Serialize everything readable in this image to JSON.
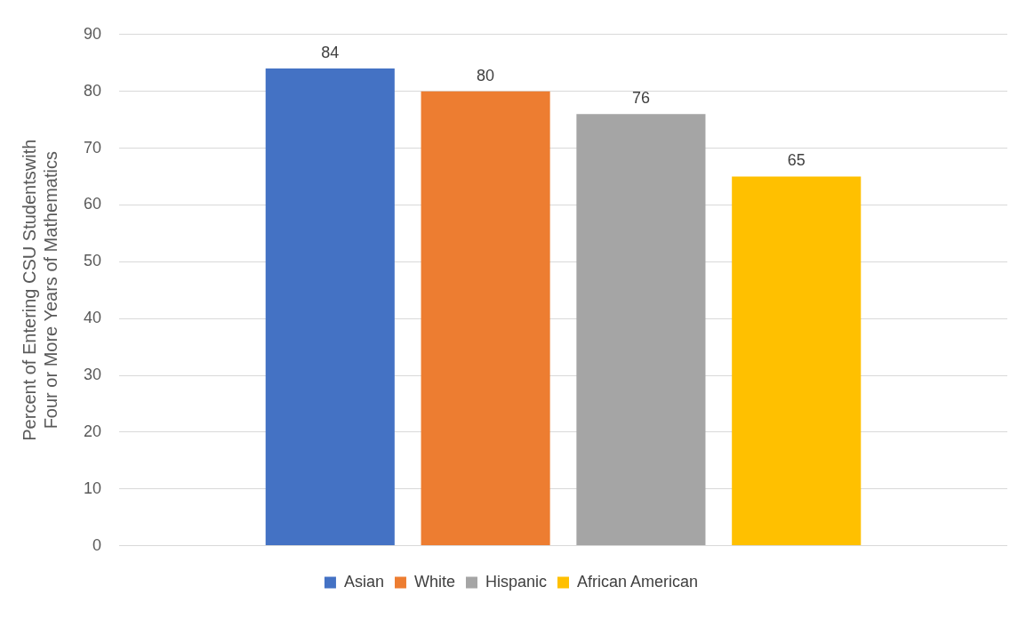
{
  "chart_data": {
    "type": "bar",
    "ylabel": "Percent of Entering CSU Studentswith Four or More Years of Mathematics",
    "categories": [
      null
    ],
    "series": [
      {
        "name": "Asian",
        "color": "#4472c4",
        "values": [
          84
        ]
      },
      {
        "name": "White",
        "color": "#ed7d31",
        "values": [
          80
        ]
      },
      {
        "name": "Hispanic",
        "color": "#a5a5a5",
        "values": [
          76
        ]
      },
      {
        "name": "African American",
        "color": "#ffc000",
        "values": [
          65
        ]
      }
    ],
    "ylim": [
      0,
      90
    ],
    "yticks": [
      0,
      10,
      20,
      30,
      40,
      50,
      60,
      70,
      80,
      90
    ],
    "grid": "y",
    "legend": "bottom",
    "data_labels": true
  }
}
